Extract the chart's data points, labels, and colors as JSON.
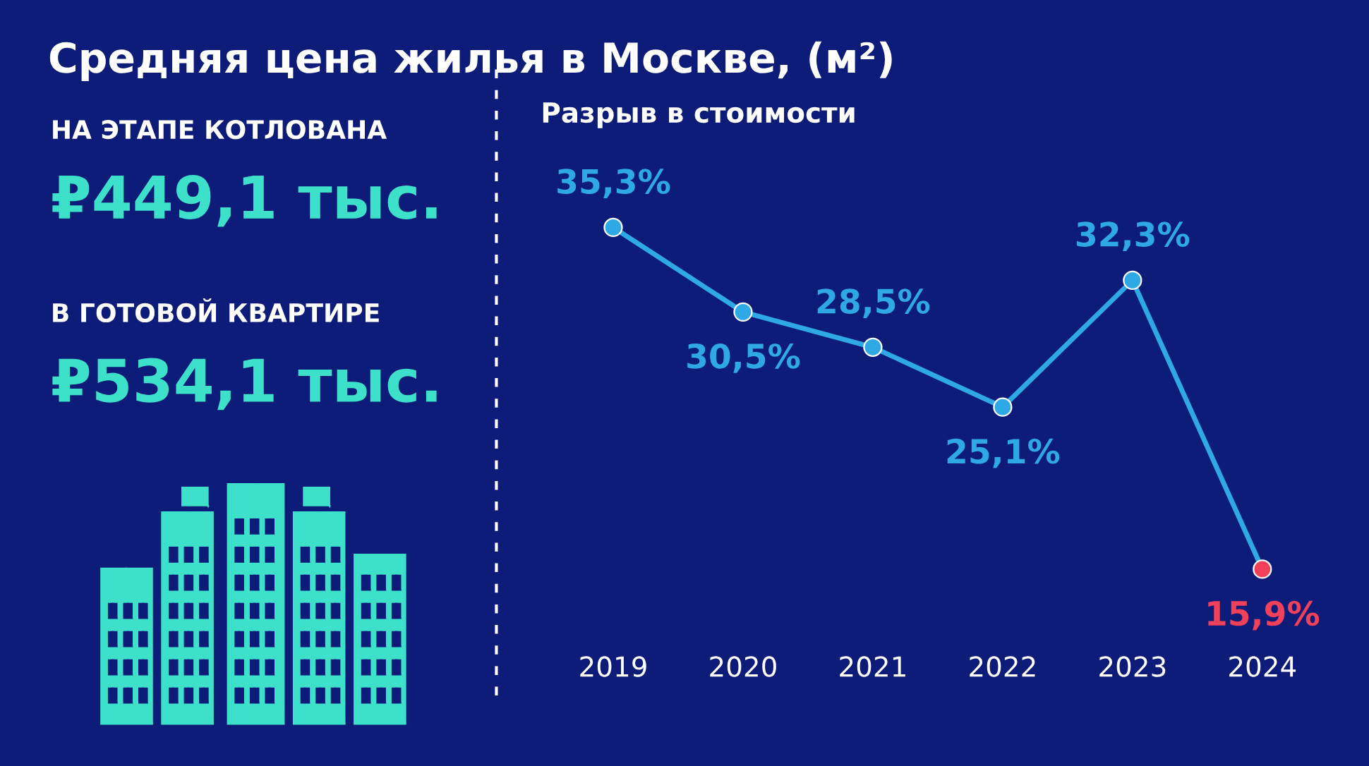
{
  "chart_data": [
    {
      "type": "other",
      "title": "Средняя цена жилья в Москве, (м²)",
      "annotations": [
        "НА ЭТАПЕ КОТЛОВАНА",
        "₽449,1 тыс.",
        "В ГОТОВОЙ КВАРТИРЕ",
        "₽534,1 тыс."
      ]
    },
    {
      "type": "line",
      "title": "Разрыв в стоимости",
      "categories": [
        "2019",
        "2020",
        "2021",
        "2022",
        "2023",
        "2024"
      ],
      "series": [
        {
          "color": "#2fa8e6",
          "values": [
            35.3,
            30.5,
            28.5,
            25.1,
            32.3,
            15.9
          ],
          "colors": [
            "#2fa8e6",
            "#2fa8e6",
            "#2fa8e6",
            "#2fa8e6",
            "#2fa8e6",
            "#f0405a"
          ],
          "value_labels": [
            "35,3%",
            "30,5%",
            "28,5%",
            "25,1%",
            "32,3%",
            "15,9%"
          ]
        }
      ],
      "marker": "circle",
      "grid": false
    }
  ]
}
